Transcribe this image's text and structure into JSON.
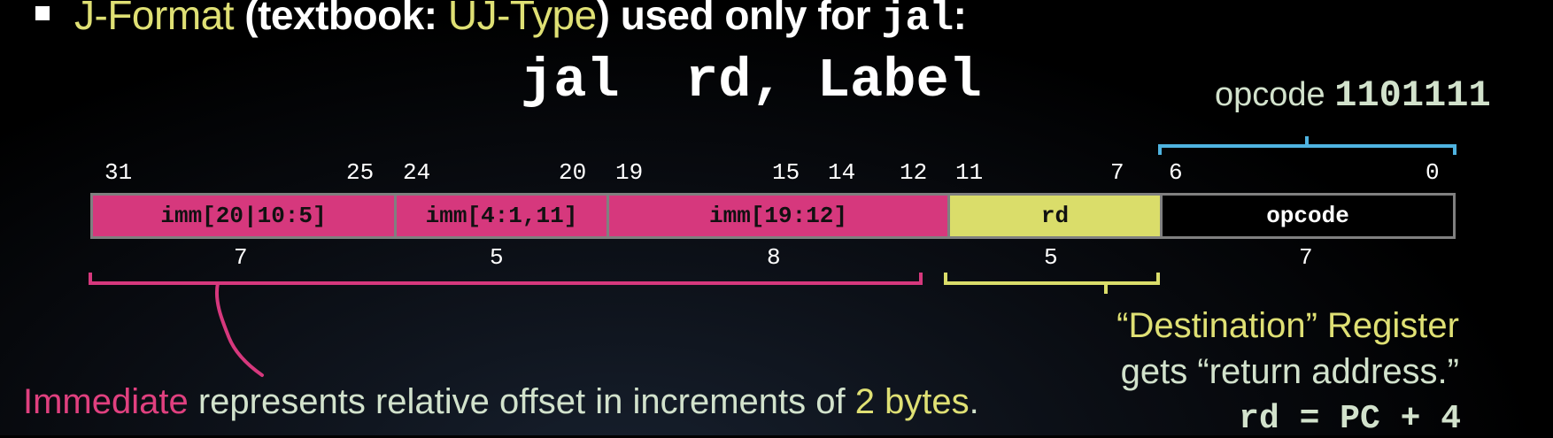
{
  "bullet": {
    "j_format": "J-Format",
    "paren_open": " (textbook: ",
    "uj_type": "UJ-Type",
    "paren_close": ") used only for ",
    "jal_code": "jal",
    "colon": ":"
  },
  "instruction": "jal  rd, Label",
  "opcode_label": {
    "word": "opcode",
    "bits": "1101111"
  },
  "bit_numbers": [
    "31",
    "25",
    "24",
    "20",
    "19",
    "15",
    "14",
    "12",
    "11",
    "7",
    "6",
    "0"
  ],
  "fields": [
    {
      "name": "imm[20|10:5]",
      "width": "7"
    },
    {
      "name": "imm[4:1,11]",
      "width": "5"
    },
    {
      "name": "imm[19:12]",
      "width": "8"
    },
    {
      "name": "rd",
      "width": "5"
    },
    {
      "name": "opcode",
      "width": "7"
    }
  ],
  "immediate_desc": {
    "immediate": "Immediate",
    "middle": " represents relative offset in increments of ",
    "bytes": "2 bytes",
    "period": "."
  },
  "destination": {
    "line1": "“Destination” Register",
    "line2": "gets “return address.”",
    "equation": "rd = PC + 4"
  },
  "colors": {
    "immediate": "#d6387d",
    "rd": "#dadd6a",
    "opcode_brace": "#4fb3e0",
    "text_green": "#d2e2cc"
  }
}
